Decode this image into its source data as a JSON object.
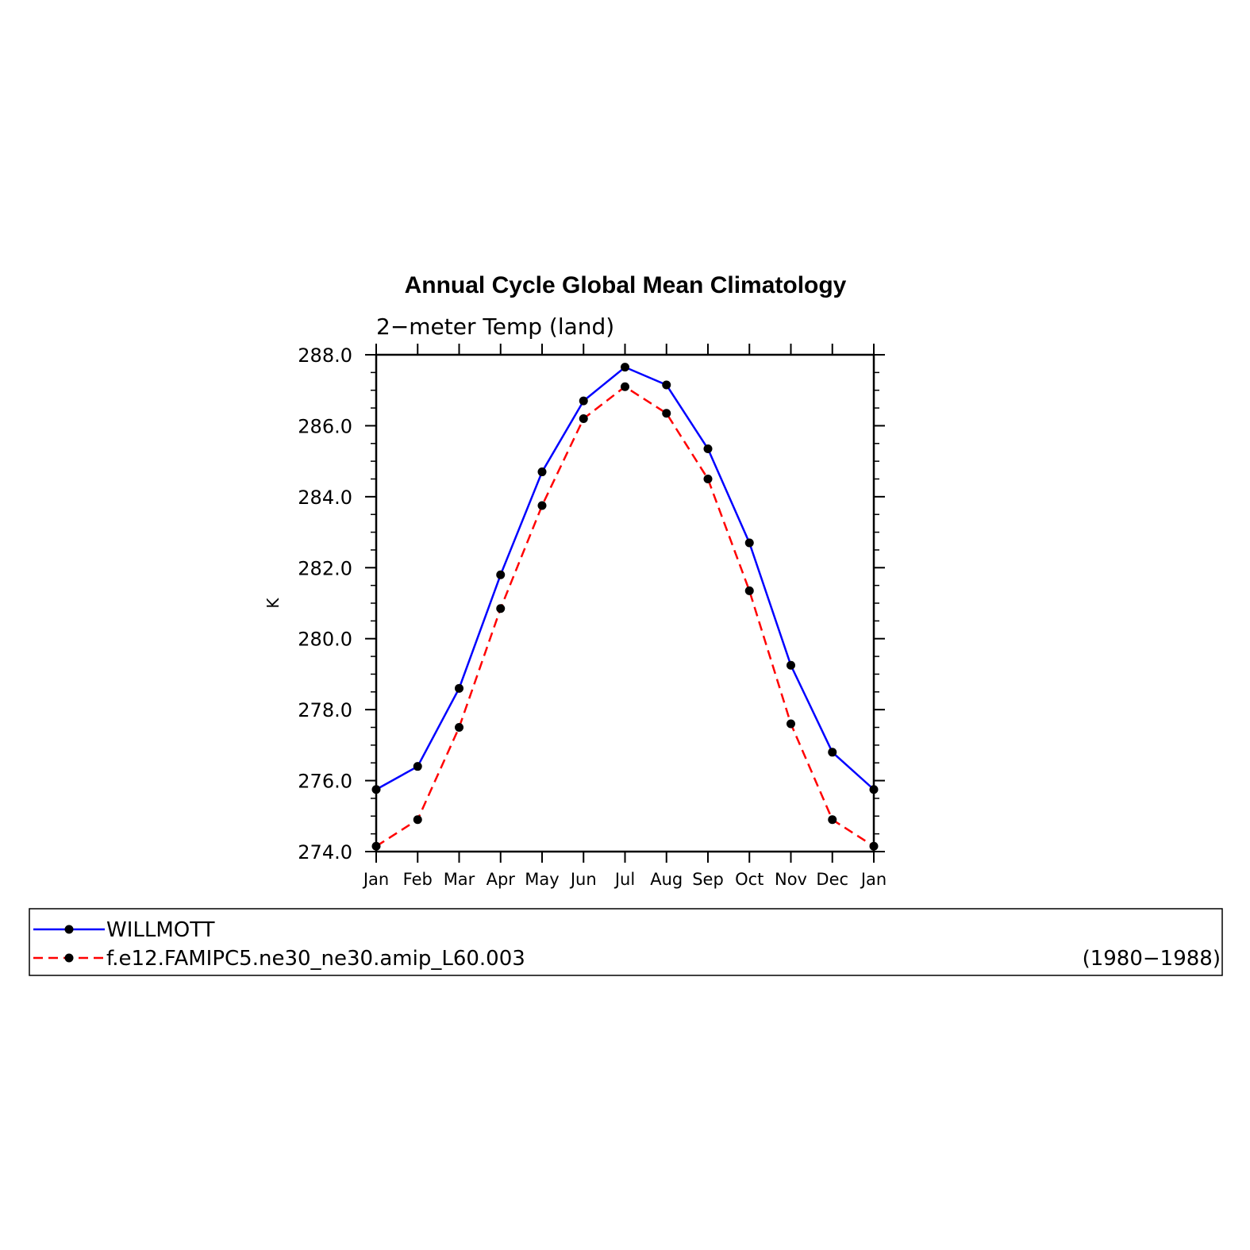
{
  "chart_data": {
    "type": "line",
    "title": "Annual Cycle Global Mean Climatology",
    "subtitle": "2−meter Temp (land)",
    "xlabel": "",
    "ylabel": "K",
    "categories": [
      "Jan",
      "Feb",
      "Mar",
      "Apr",
      "May",
      "Jun",
      "Jul",
      "Aug",
      "Sep",
      "Oct",
      "Nov",
      "Dec",
      "Jan"
    ],
    "ylim": [
      274.0,
      288.0
    ],
    "yticks": [
      "274.0",
      "276.0",
      "278.0",
      "280.0",
      "282.0",
      "284.0",
      "286.0",
      "288.0"
    ],
    "grid": false,
    "legend_position": "bottom",
    "series": [
      {
        "name": "WILLMOTT",
        "color": "#0000ff",
        "style": "solid",
        "values": [
          275.75,
          276.4,
          278.6,
          281.8,
          284.7,
          286.7,
          287.65,
          287.15,
          285.35,
          282.7,
          279.25,
          276.8,
          275.75
        ]
      },
      {
        "name": "f.e12.FAMIPC5.ne30_ne30.amip_L60.003",
        "color": "#ff0000",
        "style": "dashed",
        "values": [
          274.15,
          274.9,
          277.5,
          280.85,
          283.75,
          286.2,
          287.1,
          286.35,
          284.5,
          281.35,
          277.6,
          274.9,
          274.15
        ]
      }
    ],
    "legend_note": "(1980−1988)"
  }
}
